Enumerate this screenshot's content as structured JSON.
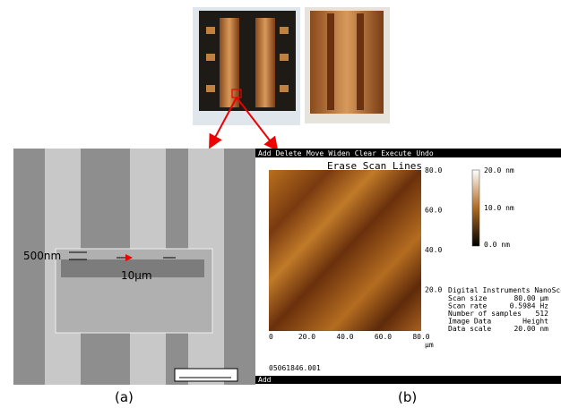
{
  "figure": {
    "panel_labels": [
      "(a)",
      "(b)"
    ],
    "sem": {
      "annotations": [
        "500nm",
        "10μm"
      ]
    },
    "afm": {
      "menu": [
        "Add",
        "Delete",
        "Move",
        "Widen",
        "Clear",
        "Execute",
        "Undo"
      ],
      "title": "Erase Scan Lines",
      "y_ticks": [
        "80.0",
        "60.0",
        "40.0",
        "20.0"
      ],
      "x_ticks": [
        "0",
        "20.0",
        "40.0",
        "60.0",
        "80.0"
      ],
      "x_unit": "μm",
      "colorbar": [
        "20.0 nm",
        "10.0 nm",
        "0.0 nm"
      ],
      "info_title": "Digital Instruments NanoScope",
      "info": [
        [
          "Scan size",
          "80.00 μm"
        ],
        [
          "Scan rate",
          "0.5984 Hz"
        ],
        [
          "Number of samples",
          "512"
        ],
        [
          "Image Data",
          "Height"
        ],
        [
          "Data scale",
          "20.00 nm"
        ]
      ],
      "filename": "05061846.001",
      "status": "Add"
    }
  }
}
